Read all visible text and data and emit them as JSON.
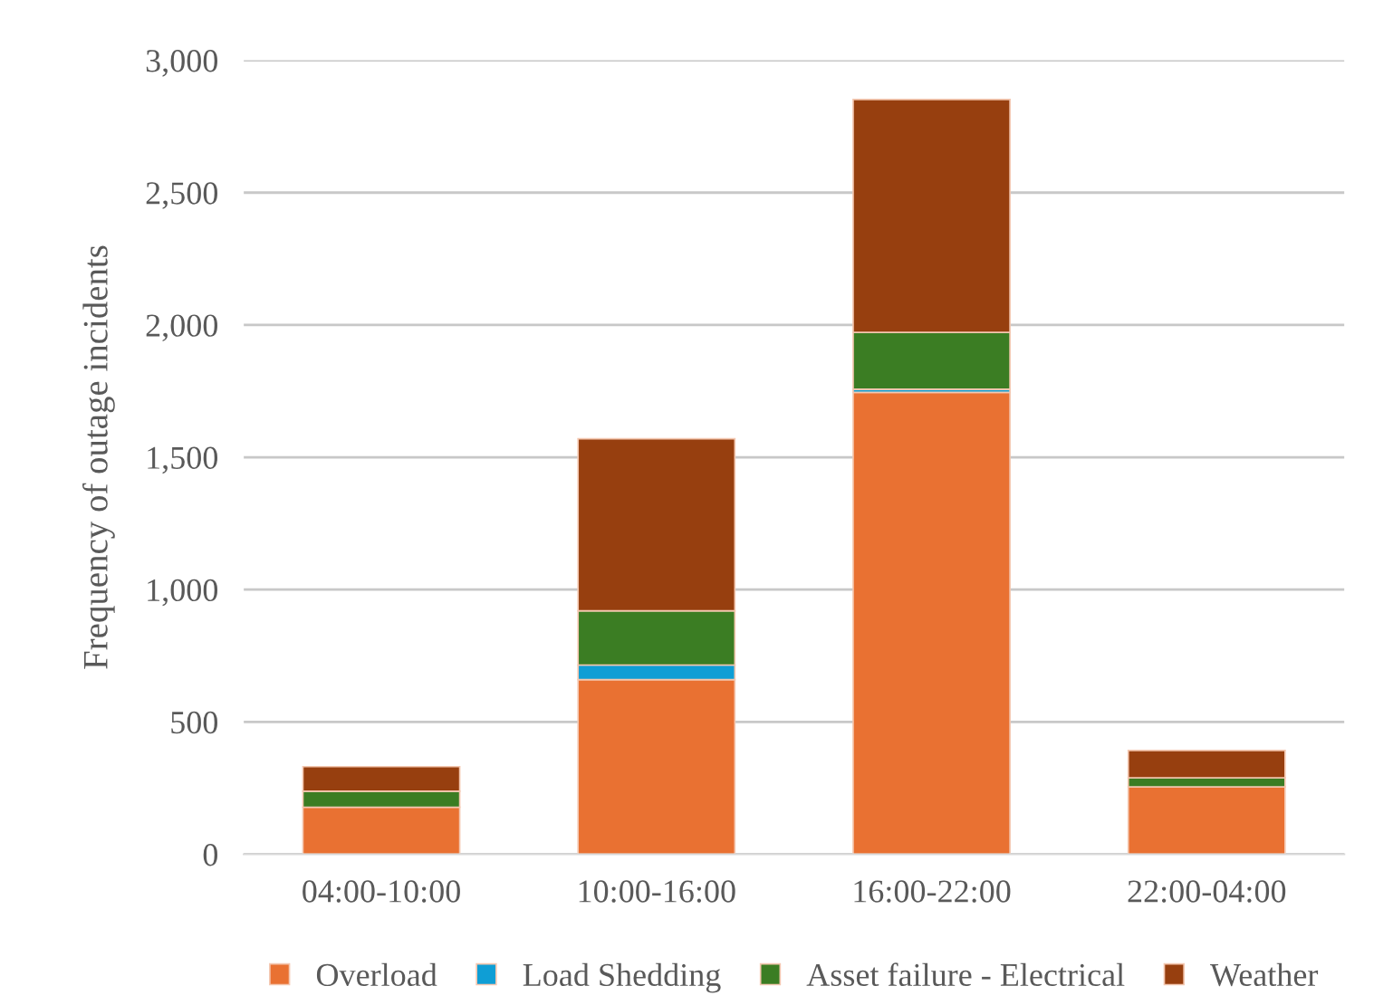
{
  "chart_data": {
    "type": "bar",
    "stacked": true,
    "ylabel": "Frequency of outage incidents",
    "categories": [
      "04:00-10:00",
      "10:00-16:00",
      "16:00-22:00",
      "22:00-04:00"
    ],
    "series": [
      {
        "name": "Overload",
        "color": "#e97132",
        "values": [
          178,
          660,
          1745,
          255
        ]
      },
      {
        "name": "Load Shedding",
        "color": "#0f9ed5",
        "values": [
          0,
          55,
          12,
          0
        ]
      },
      {
        "name": "Asset failure - Electrical",
        "color": "#3b7d23",
        "values": [
          60,
          205,
          215,
          34
        ]
      },
      {
        "name": "Weather",
        "color": "#973f0f",
        "values": [
          93,
          650,
          880,
          103
        ]
      }
    ],
    "ylim": [
      0,
      3000
    ],
    "yticks": [
      {
        "value": 0,
        "label": "0"
      },
      {
        "value": 500,
        "label": "500"
      },
      {
        "value": 1000,
        "label": "1,000"
      },
      {
        "value": 1500,
        "label": "1,500"
      },
      {
        "value": 2000,
        "label": "2,000"
      },
      {
        "value": 2500,
        "label": "2,500"
      },
      {
        "value": 3000,
        "label": "3,000"
      }
    ],
    "grid": "y",
    "legend": "bottom"
  }
}
